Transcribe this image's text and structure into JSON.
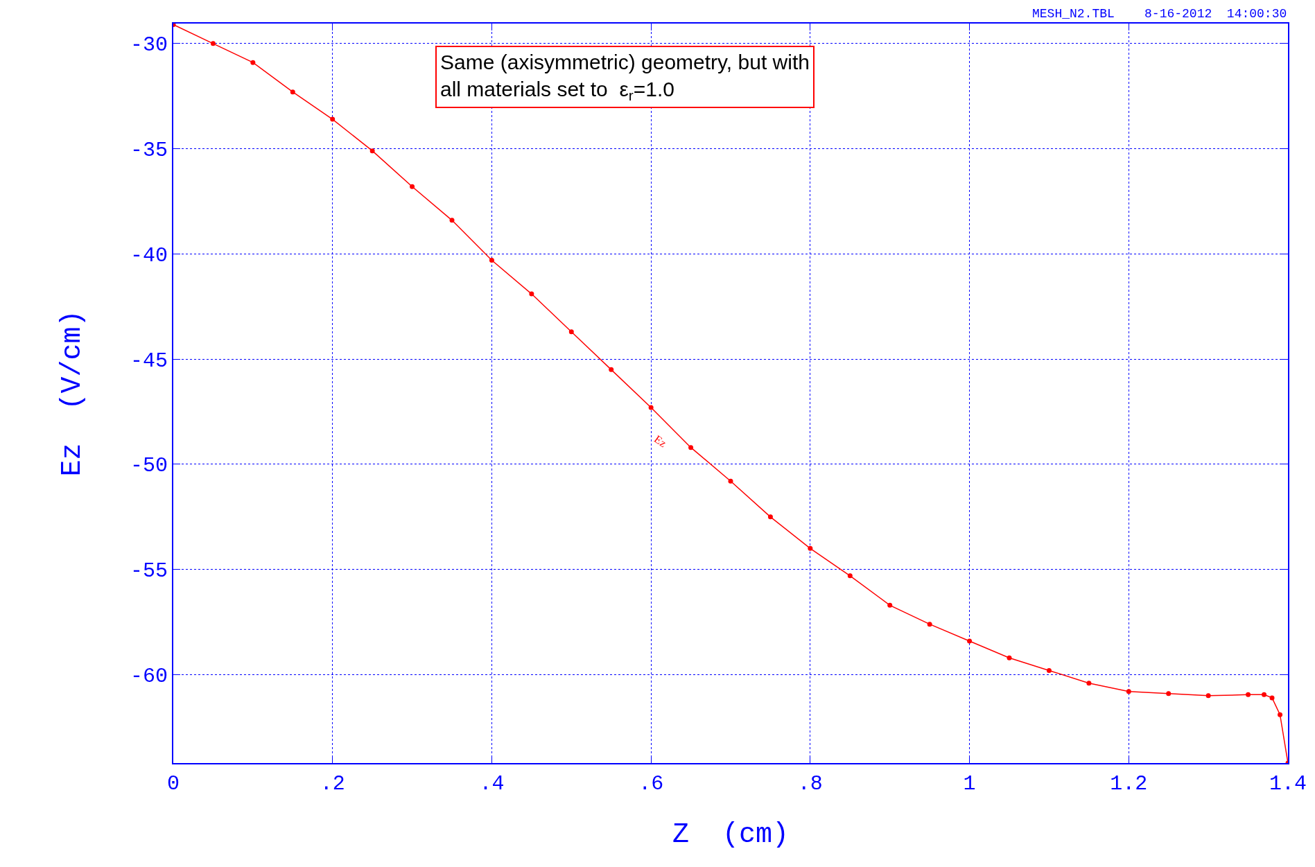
{
  "chart_data": {
    "type": "line",
    "xlabel": "Z  (cm)",
    "ylabel": "Ez  (V/cm)",
    "x": [
      0,
      0.05,
      0.1,
      0.15,
      0.2,
      0.25,
      0.3,
      0.35,
      0.4,
      0.45,
      0.5,
      0.55,
      0.6,
      0.65,
      0.7,
      0.75,
      0.8,
      0.85,
      0.9,
      0.95,
      1.0,
      1.05,
      1.1,
      1.15,
      1.2,
      1.25,
      1.3,
      1.35,
      1.37,
      1.38,
      1.39,
      1.4
    ],
    "series": [
      {
        "color": "#ff0000",
        "values": [
          -29.1,
          -30.0,
          -30.9,
          -32.3,
          -33.6,
          -35.1,
          -36.8,
          -38.4,
          -40.3,
          -41.9,
          -43.7,
          -45.5,
          -47.3,
          -49.2,
          -50.8,
          -52.5,
          -54.0,
          -55.3,
          -56.7,
          -57.6,
          -58.4,
          -59.2,
          -59.8,
          -60.4,
          -60.8,
          -60.9,
          -61.0,
          -60.95,
          -60.95,
          -61.1,
          -61.9,
          -64.2
        ]
      }
    ],
    "xlim": [
      0,
      1.4
    ],
    "ylim": [
      -64.2,
      -29.05
    ],
    "xticks": [
      0,
      {
        "value": 0.2,
        "label": ".2"
      },
      {
        "value": 0.4,
        "label": ".4"
      },
      {
        "value": 0.6,
        "label": ".6"
      },
      {
        "value": 0.8,
        "label": ".8"
      },
      1,
      1.2,
      1.4
    ],
    "yticks": [
      -60,
      -55,
      -50,
      -45,
      -40,
      -35,
      -30
    ],
    "grid": true,
    "marker": "circle",
    "line_style": "solid",
    "annotations": [
      "MESH_N2.TBL    8-16-2012  14:00:30",
      "Same (axisymmetric) geometry, but with\nall materials set to  ε$_{r}$=1.0",
      "Ez"
    ]
  }
}
